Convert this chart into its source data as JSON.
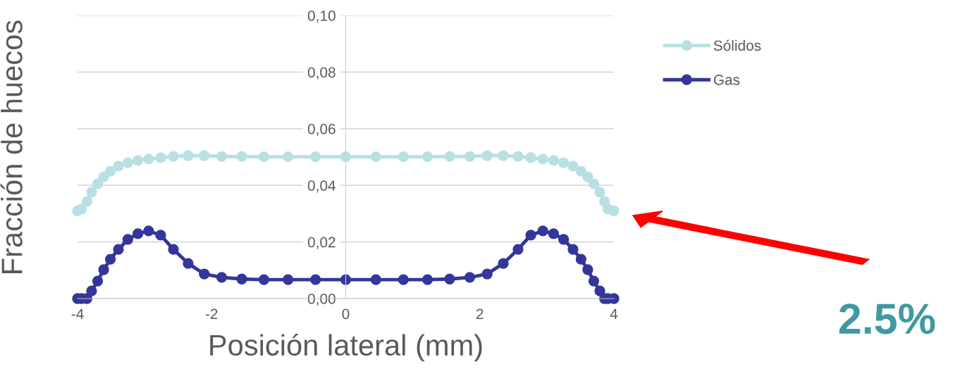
{
  "chart_data": {
    "type": "line",
    "xlabel": "Posición lateral (mm)",
    "ylabel": "Fracción de huecos",
    "x": [
      -4.0,
      -3.94,
      -3.86,
      -3.79,
      -3.7,
      -3.61,
      -3.51,
      -3.39,
      -3.25,
      -3.1,
      -2.94,
      -2.76,
      -2.57,
      -2.35,
      -2.11,
      -1.85,
      -1.55,
      -1.22,
      -0.86,
      -0.45,
      0,
      0.45,
      0.86,
      1.22,
      1.55,
      1.85,
      2.11,
      2.35,
      2.57,
      2.76,
      2.94,
      3.1,
      3.25,
      3.39,
      3.51,
      3.61,
      3.7,
      3.79,
      3.86,
      3.91,
      4.0
    ],
    "series": [
      {
        "name": "Sólidos",
        "color": "#b8e0e4",
        "values": [
          0.031,
          0.0316,
          0.0343,
          0.0376,
          0.0405,
          0.043,
          0.045,
          0.0468,
          0.048,
          0.0488,
          0.0493,
          0.0498,
          0.0502,
          0.0505,
          0.0505,
          0.0502,
          0.0502,
          0.0501,
          0.0501,
          0.0501,
          0.0501,
          0.0501,
          0.0501,
          0.0501,
          0.0502,
          0.0502,
          0.0505,
          0.0505,
          0.0502,
          0.0498,
          0.0493,
          0.0488,
          0.048,
          0.0468,
          0.045,
          0.043,
          0.0405,
          0.0376,
          0.0343,
          0.0316,
          0.031
        ]
      },
      {
        "name": "Gas",
        "color": "#35369b",
        "values": [
          0,
          0,
          0,
          0.0027,
          0.0062,
          0.0102,
          0.0139,
          0.0174,
          0.0209,
          0.0229,
          0.0239,
          0.0224,
          0.0174,
          0.0124,
          0.0087,
          0.0075,
          0.0069,
          0.0067,
          0.0067,
          0.0067,
          0.0067,
          0.0067,
          0.0067,
          0.0067,
          0.0069,
          0.0075,
          0.0087,
          0.0124,
          0.0174,
          0.0224,
          0.0239,
          0.0229,
          0.0209,
          0.0174,
          0.0139,
          0.0102,
          0.0062,
          0.0027,
          0,
          0,
          0
        ]
      }
    ],
    "xlim": [
      -4,
      4
    ],
    "xticks": [
      -4,
      -2,
      0,
      2,
      4
    ],
    "ylim": [
      0,
      0.1
    ],
    "yticks": [
      {
        "value": 0,
        "label": "0,00"
      },
      {
        "value": 0.02,
        "label": "0,02"
      },
      {
        "value": 0.04,
        "label": "0,04"
      },
      {
        "value": 0.06,
        "label": "0,06"
      },
      {
        "value": 0.08,
        "label": "0,08"
      },
      {
        "value": 0.1,
        "label": "0,10"
      }
    ],
    "grid": "y",
    "legend": "right",
    "marker": "circle",
    "line_style": "solid",
    "annotations": [
      "2.5%"
    ]
  }
}
